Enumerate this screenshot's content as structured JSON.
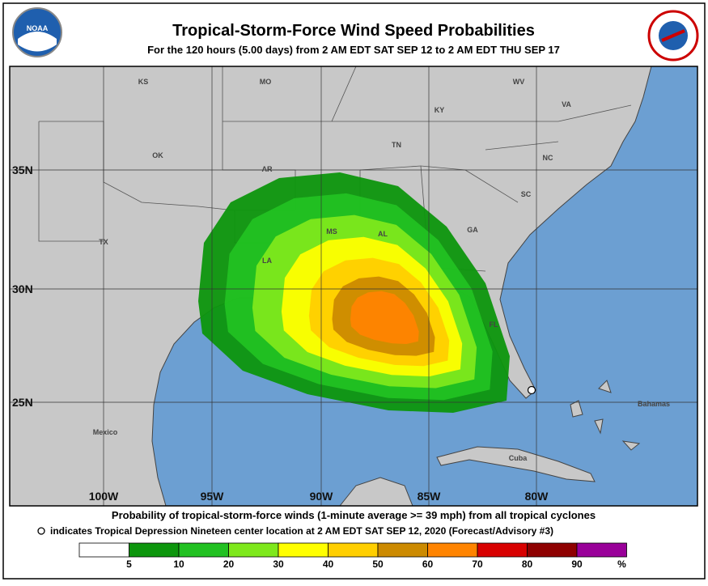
{
  "header": {
    "title": "Tropical-Storm-Force Wind Speed Probabilities",
    "subtitle": "For the 120 hours (5.00 days) from 2 AM EDT SAT SEP 12 to 2 AM EDT THU SEP 17"
  },
  "map": {
    "lat_labels": [
      "35N",
      "30N",
      "25N"
    ],
    "lon_labels": [
      "100W",
      "95W",
      "90W",
      "85W",
      "80W"
    ],
    "place_labels": [
      "KS",
      "MO",
      "WV",
      "KY",
      "VA",
      "OK",
      "TN",
      "NC",
      "AR",
      "SC",
      "TX",
      "MS",
      "AL",
      "GA",
      "LA",
      "FL",
      "Mexico",
      "Cuba",
      "Bahamas"
    ]
  },
  "footer": {
    "line1": "Probability of tropical-storm-force winds (1-minute average >= 39 mph) from all tropical cyclones",
    "line2": "indicates Tropical Depression Nineteen center location at 2 AM EDT SAT SEP 12, 2020 (Forecast/Advisory #3)"
  },
  "legend": {
    "colors": [
      "#ffffff",
      "#0d960d",
      "#22c122",
      "#7ee81c",
      "#ffff00",
      "#ffcf00",
      "#cc8a00",
      "#ff8400",
      "#d80000",
      "#8e0000",
      "#990099"
    ],
    "labels": [
      "5",
      "10",
      "20",
      "30",
      "40",
      "50",
      "60",
      "70",
      "80",
      "90"
    ],
    "unit": "%"
  }
}
